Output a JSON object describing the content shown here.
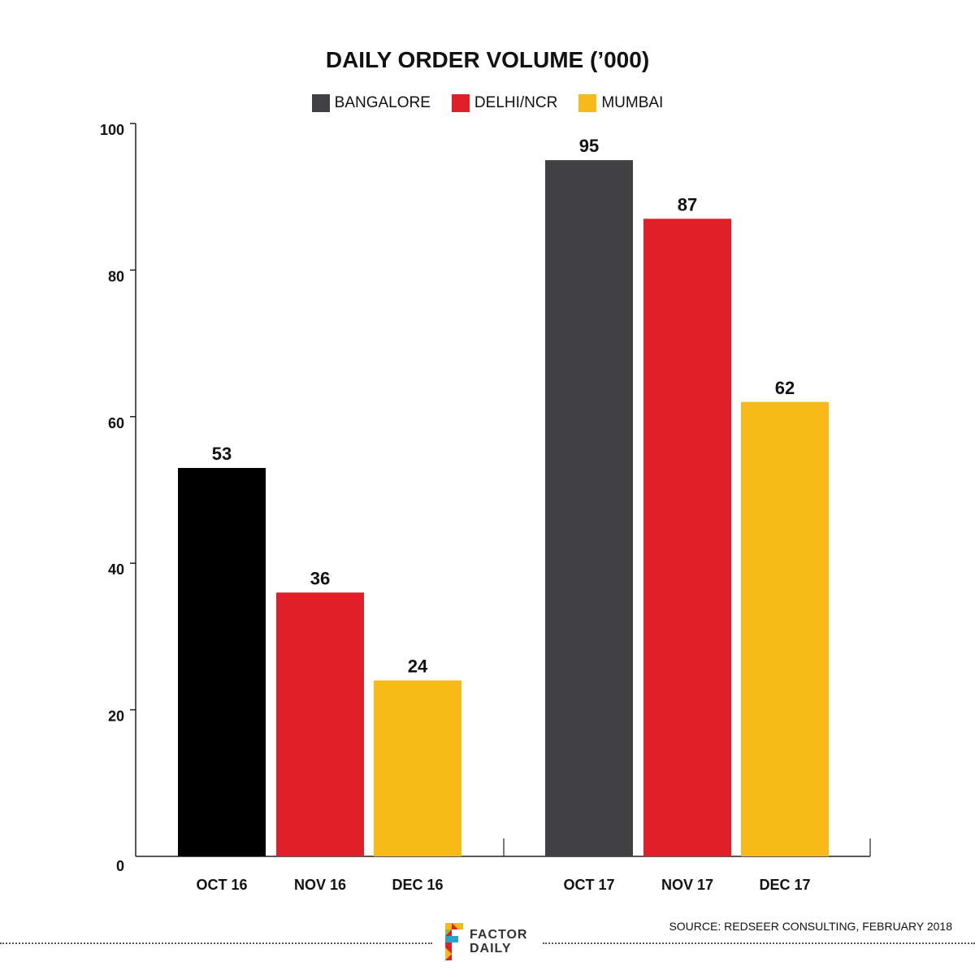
{
  "chart_data": {
    "type": "bar",
    "title": "DAILY ORDER VOLUME (’000)",
    "categories": [
      "OCT 16",
      "NOV 16",
      "DEC 16",
      "OCT 17",
      "NOV 17",
      "DEC 17"
    ],
    "values": [
      53,
      36,
      24,
      95,
      87,
      62
    ],
    "value_labels": [
      "53",
      "36",
      "24",
      "95",
      "87",
      "62"
    ],
    "bar_colors": [
      "#000000",
      "#e01f28",
      "#f6b918",
      "#414042",
      "#e01f28",
      "#f6b918"
    ],
    "groups": [
      {
        "categories": [
          "OCT 16",
          "NOV 16",
          "DEC 16"
        ]
      },
      {
        "categories": [
          "OCT 17",
          "NOV 17",
          "DEC 17"
        ]
      }
    ],
    "legend": [
      {
        "label": "BANGALORE",
        "color": "#414042"
      },
      {
        "label": "DELHI/NCR",
        "color": "#e01f28"
      },
      {
        "label": "MUMBAI",
        "color": "#f6b918"
      }
    ],
    "legend_position": "top-center",
    "ylim": [
      0,
      100
    ],
    "yticks": [
      0,
      20,
      40,
      60,
      80,
      100
    ],
    "grid": false
  },
  "footer": {
    "logo_text_1": "FACTOR",
    "logo_text_2": "DAILY",
    "source": "SOURCE: REDSEER CONSULTING, FEBRUARY 2018"
  }
}
